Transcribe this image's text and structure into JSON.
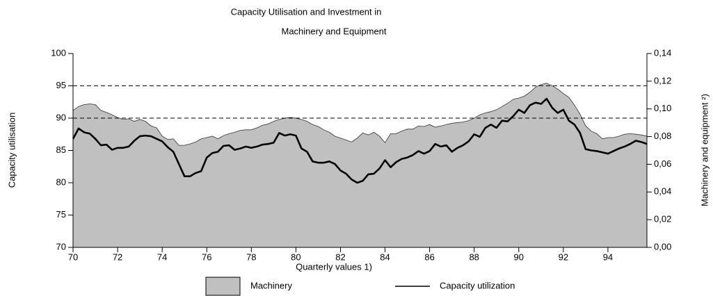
{
  "chart_data": {
    "type": "combo",
    "title": [
      "Capacity Utilisation and Investment in",
      "Machinery and Equipment"
    ],
    "x_label": "Quarterly values 1)",
    "y_label": "Capacity utilisation",
    "y2_label": "Machinery and equipment ²)",
    "xlim": [
      70,
      95.75
    ],
    "xticks": [
      70,
      72,
      74,
      76,
      78,
      80,
      82,
      84,
      86,
      88,
      90,
      92,
      94
    ],
    "ylim": [
      70,
      100
    ],
    "yticks": [
      70,
      75,
      80,
      85,
      90,
      95,
      100
    ],
    "y2lim": [
      0,
      0.14
    ],
    "y2ticks": [
      {
        "value": 0,
        "label": "0,00"
      },
      {
        "value": 0.02,
        "label": "0,02"
      },
      {
        "value": 0.04,
        "label": "0,04"
      },
      {
        "value": 0.06,
        "label": "0,06"
      },
      {
        "value": 0.08,
        "label": "0,08"
      },
      {
        "value": 0.1,
        "label": "0,10"
      },
      {
        "value": 0.12,
        "label": "0,12"
      },
      {
        "value": 0.14,
        "label": "0,14"
      }
    ],
    "hlines": [
      95,
      90
    ],
    "x": [
      70,
      70.25,
      70.5,
      70.75,
      71,
      71.25,
      71.5,
      71.75,
      72,
      72.25,
      72.5,
      72.75,
      73,
      73.25,
      73.5,
      73.75,
      74,
      74.25,
      74.5,
      74.75,
      75,
      75.25,
      75.5,
      75.75,
      76,
      76.25,
      76.5,
      76.75,
      77,
      77.25,
      77.5,
      77.75,
      78,
      78.25,
      78.5,
      78.75,
      79,
      79.25,
      79.5,
      79.75,
      80,
      80.25,
      80.5,
      80.75,
      81,
      81.25,
      81.5,
      81.75,
      82,
      82.25,
      82.5,
      82.75,
      83,
      83.25,
      83.5,
      83.75,
      84,
      84.25,
      84.5,
      84.75,
      85,
      85.25,
      85.5,
      85.75,
      86,
      86.25,
      86.5,
      86.75,
      87,
      87.25,
      87.5,
      87.75,
      88,
      88.25,
      88.5,
      88.75,
      89,
      89.25,
      89.5,
      89.75,
      90,
      90.25,
      90.5,
      90.75,
      91,
      91.25,
      91.5,
      91.75,
      92,
      92.25,
      92.5,
      92.75,
      93,
      93.25,
      93.5,
      93.75,
      94,
      94.25,
      94.5,
      94.75,
      95,
      95.25,
      95.5,
      95.75
    ],
    "series": [
      {
        "name": "Machinery",
        "type": "area",
        "axis": "y2",
        "color": "#c0c0c0",
        "values": [
          0.0989,
          0.1017,
          0.1031,
          0.1036,
          0.1031,
          0.0989,
          0.0975,
          0.0957,
          0.0938,
          0.0924,
          0.0929,
          0.091,
          0.0924,
          0.091,
          0.0877,
          0.0863,
          0.0803,
          0.0779,
          0.0784,
          0.0737,
          0.0737,
          0.0747,
          0.0761,
          0.0784,
          0.0793,
          0.0803,
          0.0784,
          0.0807,
          0.0821,
          0.0831,
          0.0845,
          0.0849,
          0.0849,
          0.0863,
          0.0882,
          0.0891,
          0.091,
          0.0924,
          0.0933,
          0.0938,
          0.0933,
          0.0924,
          0.091,
          0.0887,
          0.0873,
          0.0849,
          0.0831,
          0.0803,
          0.0789,
          0.0775,
          0.0761,
          0.0789,
          0.0826,
          0.0812,
          0.0831,
          0.0803,
          0.0756,
          0.0821,
          0.0821,
          0.084,
          0.0854,
          0.0854,
          0.0877,
          0.0873,
          0.0887,
          0.0868,
          0.0877,
          0.0887,
          0.0896,
          0.0901,
          0.0905,
          0.0915,
          0.0933,
          0.0957,
          0.0971,
          0.098,
          0.0994,
          0.1017,
          0.1041,
          0.1069,
          0.1078,
          0.1092,
          0.112,
          0.1157,
          0.1176,
          0.1185,
          0.1167,
          0.1143,
          0.1111,
          0.1083,
          0.1027,
          0.0961,
          0.0877,
          0.084,
          0.0821,
          0.0784,
          0.0793,
          0.0793,
          0.0803,
          0.0817,
          0.0821,
          0.0817,
          0.0812,
          0.0803
        ]
      },
      {
        "name": "Capacity utilization",
        "type": "line",
        "axis": "y",
        "color": "#000000",
        "values": [
          86.8,
          88.4,
          87.8,
          87.6,
          86.8,
          85.8,
          85.9,
          85.1,
          85.4,
          85.4,
          85.6,
          86.5,
          87.2,
          87.3,
          87.2,
          86.8,
          86.4,
          85.5,
          84.8,
          82.9,
          81,
          81,
          81.5,
          81.8,
          83.9,
          84.6,
          84.8,
          85.7,
          85.8,
          85.1,
          85.3,
          85.6,
          85.4,
          85.6,
          85.9,
          86,
          86.2,
          87.7,
          87.3,
          87.5,
          87.3,
          85.3,
          84.8,
          83.3,
          83.1,
          83.1,
          83.3,
          82.9,
          81.9,
          81.4,
          80.5,
          80,
          80.3,
          81.3,
          81.4,
          82.2,
          83.5,
          82.4,
          83.2,
          83.7,
          83.9,
          84.3,
          84.9,
          84.5,
          84.9,
          86,
          85.6,
          85.8,
          84.8,
          85.4,
          85.8,
          86.4,
          87.5,
          87.1,
          88.5,
          89,
          88.5,
          89.6,
          89.5,
          90.3,
          91.3,
          90.8,
          92,
          92.4,
          92.2,
          93,
          91.6,
          90.8,
          91.3,
          89.6,
          89,
          87.7,
          85.2,
          85,
          84.9,
          84.7,
          84.5,
          84.9,
          85.3,
          85.6,
          86,
          86.5,
          86.3,
          86
        ]
      }
    ]
  }
}
